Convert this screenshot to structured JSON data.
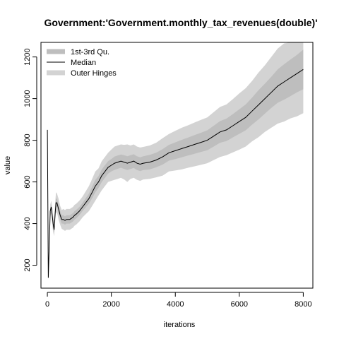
{
  "chart_data": {
    "type": "line",
    "title": "Government:'Government.monthly_tax_revenues(double)'",
    "xlabel": "iterations",
    "ylabel": "value",
    "xlim": [
      -200,
      8300
    ],
    "ylim": [
      90,
      1270
    ],
    "x_ticks": [
      0,
      2000,
      4000,
      6000,
      8000
    ],
    "x_tick_labels": [
      "0",
      "2000",
      "4000",
      "6000",
      "8000"
    ],
    "y_ticks": [
      200,
      400,
      600,
      800,
      1000,
      1200
    ],
    "y_tick_labels": [
      "200",
      "400",
      "600",
      "800",
      "1000",
      "1200"
    ],
    "grid": false,
    "legend_position": "top-left",
    "legend": [
      {
        "label": "1st-3rd Qu.",
        "color": "#bebebe",
        "style": "band"
      },
      {
        "label": "Median",
        "color": "#000000",
        "style": "line"
      },
      {
        "label": "Outer Hinges",
        "color": "#d3d3d3",
        "style": "band"
      }
    ],
    "x": [
      0,
      30,
      60,
      90,
      120,
      150,
      180,
      210,
      240,
      270,
      300,
      350,
      400,
      450,
      500,
      550,
      600,
      650,
      700,
      750,
      800,
      850,
      900,
      1000,
      1100,
      1200,
      1300,
      1400,
      1500,
      1600,
      1700,
      1800,
      1900,
      2000,
      2100,
      2200,
      2300,
      2400,
      2500,
      2600,
      2700,
      2800,
      2900,
      3000,
      3200,
      3400,
      3600,
      3800,
      4000,
      4200,
      4400,
      4600,
      4800,
      5000,
      5200,
      5400,
      5600,
      5800,
      6000,
      6200,
      6400,
      6600,
      6800,
      7000,
      7200,
      7400,
      7600,
      7800,
      8000
    ],
    "series": [
      {
        "name": "Median",
        "values": [
          850,
          140,
          300,
          460,
          480,
          440,
          400,
          370,
          440,
          500,
          500,
          470,
          440,
          420,
          420,
          415,
          420,
          420,
          420,
          425,
          430,
          440,
          445,
          460,
          480,
          500,
          520,
          550,
          580,
          600,
          630,
          650,
          670,
          680,
          690,
          695,
          700,
          695,
          690,
          695,
          700,
          690,
          685,
          690,
          695,
          705,
          720,
          740,
          750,
          760,
          770,
          780,
          790,
          800,
          820,
          840,
          850,
          870,
          890,
          910,
          940,
          970,
          1000,
          1030,
          1060,
          1080,
          1100,
          1120,
          1140
        ]
      },
      {
        "name": "1st-3rd Qu.",
        "values": [
          850,
          140,
          300,
          450,
          470,
          425,
          380,
          355,
          420,
          480,
          480,
          450,
          420,
          400,
          400,
          395,
          400,
          400,
          400,
          405,
          410,
          420,
          425,
          440,
          460,
          478,
          496,
          522,
          550,
          572,
          600,
          620,
          640,
          650,
          658,
          663,
          668,
          662,
          657,
          662,
          667,
          657,
          652,
          657,
          660,
          670,
          683,
          702,
          710,
          718,
          727,
          735,
          744,
          752,
          770,
          788,
          796,
          814,
          831,
          848,
          875,
          900,
          928,
          955,
          980,
          995,
          1012,
          1030,
          1045
        ]
      },
      {
        "name": "1st-3rd Qu. upper",
        "values": [
          850,
          140,
          300,
          470,
          490,
          455,
          420,
          385,
          460,
          520,
          520,
          490,
          460,
          440,
          440,
          435,
          440,
          440,
          440,
          445,
          450,
          460,
          465,
          480,
          500,
          522,
          544,
          578,
          610,
          628,
          660,
          680,
          700,
          710,
          722,
          727,
          732,
          728,
          723,
          728,
          733,
          723,
          718,
          723,
          730,
          740,
          757,
          778,
          790,
          802,
          813,
          825,
          836,
          848,
          870,
          892,
          904,
          926,
          949,
          972,
          1005,
          1040,
          1072,
          1105,
          1140,
          1165,
          1188,
          1210,
          1235
        ]
      },
      {
        "name": "Outer Hinges lower",
        "values": [
          850,
          140,
          300,
          430,
          450,
          400,
          360,
          340,
          400,
          450,
          455,
          420,
          395,
          375,
          370,
          365,
          370,
          370,
          370,
          375,
          380,
          390,
          395,
          410,
          430,
          445,
          460,
          485,
          510,
          535,
          560,
          580,
          600,
          605,
          610,
          615,
          620,
          612,
          600,
          615,
          620,
          610,
          605,
          612,
          615,
          622,
          630,
          650,
          655,
          660,
          668,
          675,
          682,
          690,
          705,
          720,
          728,
          742,
          755,
          770,
          795,
          815,
          840,
          860,
          880,
          890,
          905,
          915,
          930
        ]
      },
      {
        "name": "Outer Hinges upper",
        "values": [
          850,
          140,
          300,
          490,
          510,
          480,
          440,
          410,
          490,
          550,
          545,
          520,
          485,
          465,
          470,
          465,
          470,
          470,
          470,
          475,
          480,
          490,
          495,
          510,
          530,
          555,
          580,
          615,
          650,
          665,
          700,
          720,
          740,
          755,
          770,
          775,
          780,
          778,
          780,
          775,
          780,
          770,
          765,
          768,
          775,
          788,
          810,
          830,
          845,
          860,
          872,
          885,
          898,
          910,
          935,
          960,
          972,
          998,
          1025,
          1050,
          1085,
          1125,
          1160,
          1200,
          1240,
          1265,
          1270,
          1270,
          1270
        ]
      }
    ]
  }
}
